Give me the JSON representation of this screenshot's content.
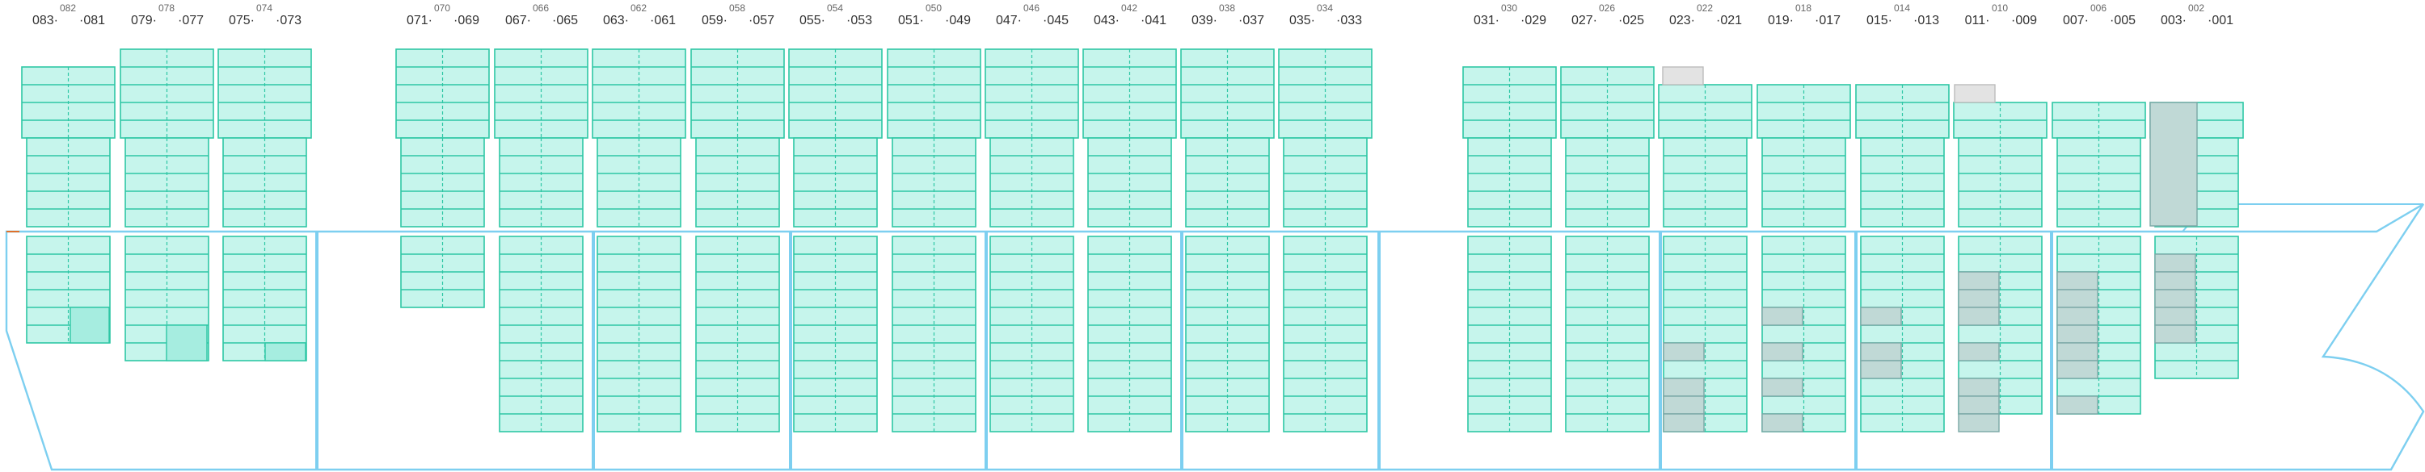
{
  "colors": {
    "stack_fill": "#c6f5ec",
    "stack_stroke": "#2ec7a5",
    "hull_stroke": "#7dcff0",
    "occupied_fill": "#c0d9d6",
    "occupied_stroke": "#7aa8a6",
    "highlight_fill": "#a6ede0",
    "empty_gray": "#e3e3e3",
    "label": "#333333"
  },
  "bays": [
    {
      "small": "082",
      "left": "083",
      "right": "081"
    },
    {
      "small": "078",
      "left": "079",
      "right": "077"
    },
    {
      "small": "074",
      "left": "075",
      "right": "073"
    },
    {
      "small": "070",
      "left": "071",
      "right": "069"
    },
    {
      "small": "066",
      "left": "067",
      "right": "065"
    },
    {
      "small": "062",
      "left": "063",
      "right": "061"
    },
    {
      "small": "058",
      "left": "059",
      "right": "057"
    },
    {
      "small": "054",
      "left": "055",
      "right": "053"
    },
    {
      "small": "050",
      "left": "051",
      "right": "049"
    },
    {
      "small": "046",
      "left": "047",
      "right": "045"
    },
    {
      "small": "042",
      "left": "043",
      "right": "041"
    },
    {
      "small": "038",
      "left": "039",
      "right": "037"
    },
    {
      "small": "034",
      "left": "035",
      "right": "033"
    },
    {
      "small": "030",
      "left": "031",
      "right": "029"
    },
    {
      "small": "026",
      "left": "027",
      "right": "025"
    },
    {
      "small": "022",
      "left": "023",
      "right": "021"
    },
    {
      "small": "018",
      "left": "019",
      "right": "017"
    },
    {
      "small": "014",
      "left": "015",
      "right": "013"
    },
    {
      "small": "010",
      "left": "011",
      "right": "009"
    },
    {
      "small": "006",
      "left": "007",
      "right": "005"
    },
    {
      "small": "002",
      "left": "003",
      "right": "001"
    }
  ]
}
